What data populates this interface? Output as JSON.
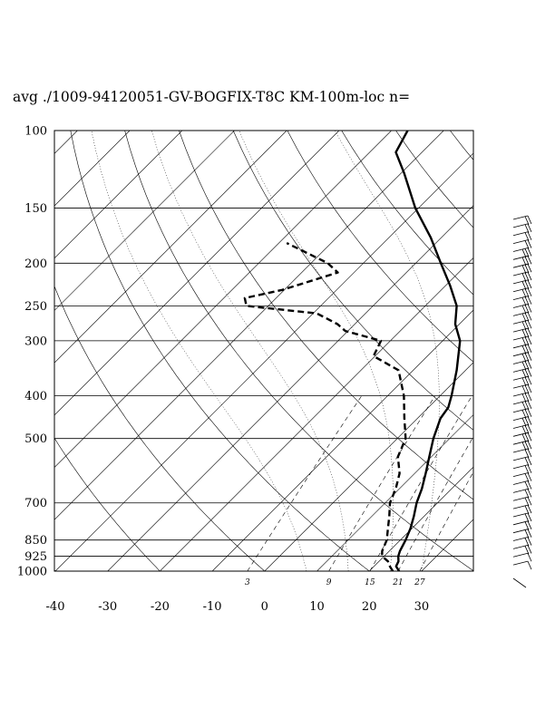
{
  "chart_data": {
    "type": "line",
    "title": "avg ./1009-94120051-GV-BOGFIX-T8C KM-100m-loc n=",
    "xlabel": "",
    "ylabel": "",
    "pressure_ticks": [
      100,
      150,
      200,
      250,
      300,
      400,
      500,
      700,
      850,
      925,
      1000
    ],
    "temperature_ticks": [
      -40,
      -30,
      -20,
      -10,
      0,
      10,
      20,
      30
    ],
    "xlim": [
      -40,
      40
    ],
    "plim": [
      100,
      1000
    ],
    "mixing_ratio_labels": [
      "3",
      "9",
      "15",
      "21",
      "27"
    ],
    "series": [
      {
        "style": "solid",
        "points": [
          [
            1000,
            25.7
          ],
          [
            975,
            24.2
          ],
          [
            950,
            23.7
          ],
          [
            925,
            22.7
          ],
          [
            900,
            22.0
          ],
          [
            850,
            21.0
          ],
          [
            800,
            19.7
          ],
          [
            750,
            18.0
          ],
          [
            700,
            16.0
          ],
          [
            650,
            14.3
          ],
          [
            600,
            12.1
          ],
          [
            550,
            9.6
          ],
          [
            500,
            6.9
          ],
          [
            450,
            4.4
          ],
          [
            425,
            3.8
          ],
          [
            400,
            2.2
          ],
          [
            350,
            -1.7
          ],
          [
            300,
            -6.7
          ],
          [
            275,
            -10.8
          ],
          [
            250,
            -14.0
          ],
          [
            225,
            -19.1
          ],
          [
            200,
            -25.2
          ],
          [
            175,
            -32.0
          ],
          [
            150,
            -40.6
          ],
          [
            125,
            -49.4
          ],
          [
            112,
            -55.0
          ],
          [
            100,
            -56.9
          ]
        ]
      },
      {
        "style": "dashed",
        "points": [
          [
            1000,
            24.5
          ],
          [
            975,
            23.0
          ],
          [
            950,
            21.7
          ],
          [
            925,
            19.6
          ],
          [
            900,
            18.6
          ],
          [
            850,
            17.4
          ],
          [
            800,
            15.4
          ],
          [
            750,
            13.3
          ],
          [
            700,
            10.9
          ],
          [
            650,
            9.3
          ],
          [
            600,
            7.1
          ],
          [
            550,
            3.6
          ],
          [
            500,
            1.6
          ],
          [
            450,
            -2.5
          ],
          [
            400,
            -6.9
          ],
          [
            350,
            -12.8
          ],
          [
            325,
            -20.3
          ],
          [
            300,
            -21.8
          ],
          [
            285,
            -30.5
          ],
          [
            275,
            -33.3
          ],
          [
            260,
            -39.3
          ],
          [
            250,
            -54.2
          ],
          [
            240,
            -56.0
          ],
          [
            230,
            -50.4
          ],
          [
            210,
            -43.1
          ],
          [
            200,
            -46.8
          ],
          [
            180,
            -58.5
          ]
        ]
      }
    ],
    "wind_barbs": [
      "calm",
      "light",
      "light",
      "moderate",
      "moderate",
      "moderate",
      "moderate",
      "moderate",
      "moderate",
      "moderate",
      "moderate",
      "moderate",
      "moderate",
      "moderate",
      "moderate",
      "moderate",
      "strong",
      "strong",
      "strong",
      "strong",
      "strong",
      "strong",
      "strong",
      "strong",
      "strong",
      "strong",
      "strong",
      "strong",
      "strong",
      "strong",
      "strong",
      "strong",
      "strong",
      "strong",
      "strong",
      "strong",
      "strong",
      "strong",
      "strong",
      "strong",
      "strong",
      "moderate",
      "moderate",
      "moderate",
      "moderate"
    ],
    "grid": true
  }
}
